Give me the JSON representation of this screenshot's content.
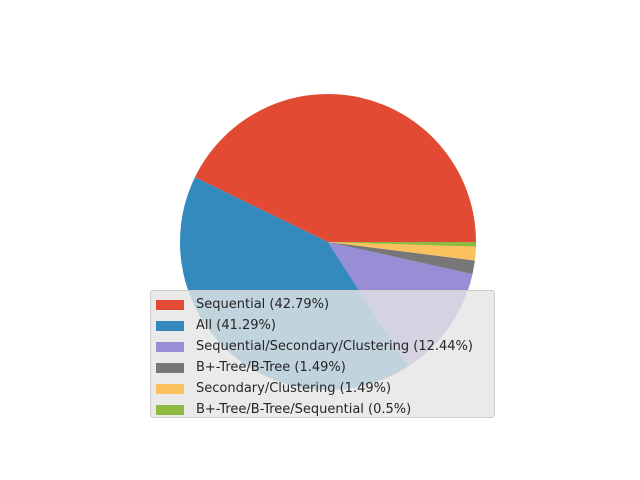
{
  "chart_data": {
    "type": "pie",
    "title": "",
    "slices": [
      {
        "label": "Sequential (42.79%)",
        "value": 42.79,
        "color": "#e24a33"
      },
      {
        "label": "All (41.29%)",
        "value": 41.29,
        "color": "#348abd"
      },
      {
        "label": "Sequential/Secondary/Clustering (12.44%)",
        "value": 12.44,
        "color": "#988ed5"
      },
      {
        "label": "B+-Tree/B-Tree (1.49%)",
        "value": 1.49,
        "color": "#777777"
      },
      {
        "label": "Secondary/Clustering (1.49%)",
        "value": 1.49,
        "color": "#fbc15e"
      },
      {
        "label": "B+-Tree/B-Tree/Sequential (0.5%)",
        "value": 0.5,
        "color": "#8eba42"
      }
    ],
    "legend": {
      "position": "lower-center"
    }
  }
}
